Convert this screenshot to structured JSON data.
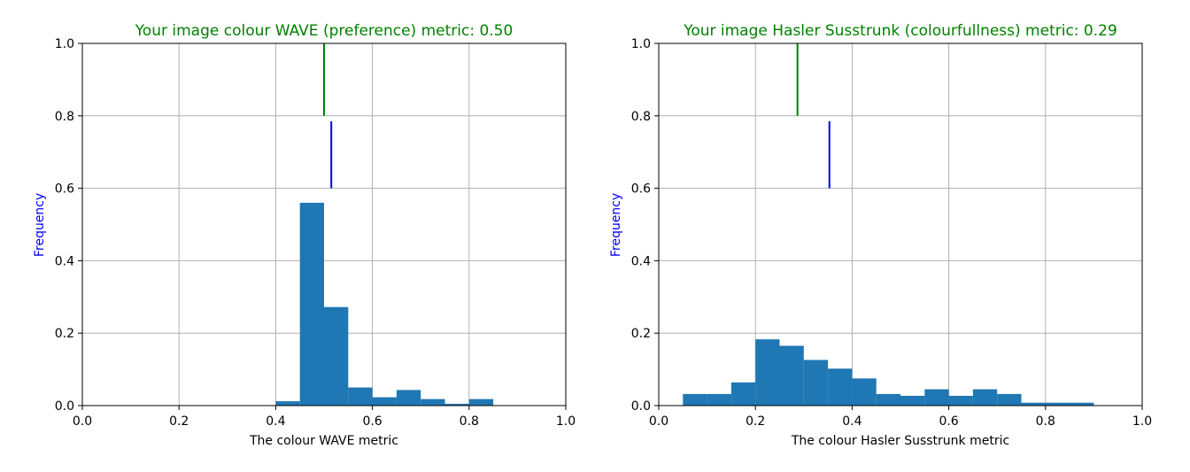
{
  "colors": {
    "bar": "#1f77b4",
    "title": "#008000",
    "ylabel": "#0000ff",
    "image_marker": "#008000",
    "reference_marker": "#0000ff",
    "grid": "#b0b0b0"
  },
  "chart_data": [
    {
      "type": "bar",
      "title": "Your image colour WAVE (preference) metric: 0.50",
      "xlabel": "The colour WAVE metric",
      "ylabel": "Frequency",
      "xlim": [
        0.0,
        1.0
      ],
      "ylim": [
        0.0,
        1.0
      ],
      "x_ticks": [
        "0.0",
        "0.2",
        "0.4",
        "0.6",
        "0.8",
        "1.0"
      ],
      "y_ticks": [
        "0.0",
        "0.2",
        "0.4",
        "0.6",
        "0.8",
        "1.0"
      ],
      "grid": true,
      "bin_width": 0.05,
      "bin_starts": [
        0.4,
        0.45,
        0.5,
        0.55,
        0.6,
        0.65,
        0.7,
        0.75,
        0.8
      ],
      "values": [
        0.012,
        0.56,
        0.272,
        0.05,
        0.023,
        0.043,
        0.018,
        0.005,
        0.018
      ],
      "markers": [
        {
          "x": 0.5,
          "y_range": [
            0.8,
            1.0
          ],
          "color": "green"
        },
        {
          "x": 0.515,
          "y_range": [
            0.6,
            0.785
          ],
          "color": "blue"
        }
      ]
    },
    {
      "type": "bar",
      "title": "Your image Hasler Susstrunk (colourfullness) metric: 0.29",
      "xlabel": "The colour Hasler Susstrunk metric",
      "ylabel": "Frequency",
      "xlim": [
        0.0,
        1.0
      ],
      "ylim": [
        0.0,
        1.0
      ],
      "x_ticks": [
        "0.0",
        "0.2",
        "0.4",
        "0.6",
        "0.8",
        "1.0"
      ],
      "y_ticks": [
        "0.0",
        "0.2",
        "0.4",
        "0.6",
        "0.8",
        "1.0"
      ],
      "grid": true,
      "bin_width": 0.05,
      "bin_starts": [
        0.05,
        0.1,
        0.15,
        0.2,
        0.25,
        0.3,
        0.35,
        0.4,
        0.45,
        0.5,
        0.55,
        0.6,
        0.65,
        0.7,
        0.75,
        0.8,
        0.85
      ],
      "values": [
        0.032,
        0.032,
        0.064,
        0.183,
        0.165,
        0.126,
        0.102,
        0.075,
        0.032,
        0.027,
        0.045,
        0.027,
        0.045,
        0.032,
        0.008,
        0.008,
        0.008
      ],
      "markers": [
        {
          "x": 0.287,
          "y_range": [
            0.8,
            1.0
          ],
          "color": "green"
        },
        {
          "x": 0.353,
          "y_range": [
            0.6,
            0.785
          ],
          "color": "blue"
        }
      ]
    }
  ]
}
